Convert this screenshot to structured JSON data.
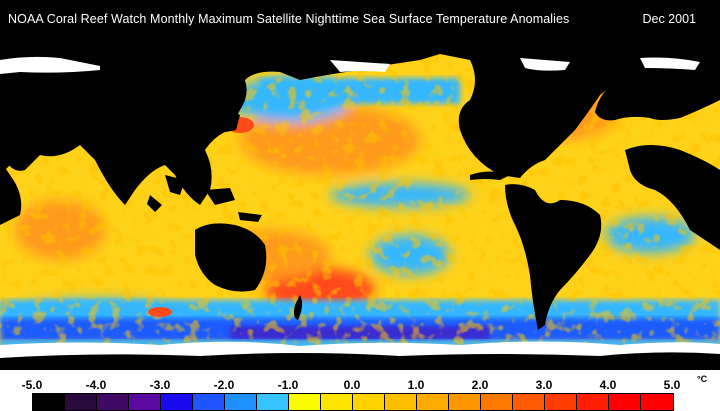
{
  "header": {
    "title": "NOAA Coral Reef Watch Monthly Maximum Satellite Nighttime Sea Surface Temperature Anomalies",
    "date": "Dec 2001"
  },
  "map": {
    "projection": "equirectangular world map centred on the Pacific",
    "ocean_field_colors": {
      "base": "#ffd21a",
      "warm": "#ff9a1a",
      "hot": "#ff4a1a",
      "cool": "#35b7ff",
      "cold": "#1f5cff",
      "very_cold": "#3a2cd0",
      "neutral": "#f6f600"
    },
    "land_color": "#000000",
    "ice_color": "#ffffff"
  },
  "legend": {
    "tick_labels": [
      "-5.0",
      "-4.0",
      "-3.0",
      "-2.0",
      "-1.0",
      "0.0",
      "1.0",
      "2.0",
      "3.0",
      "4.0",
      "5.0"
    ],
    "unit": "°C",
    "colors": [
      "#000000",
      "#2a0a3c",
      "#400a64",
      "#5a0aa0",
      "#1a0af0",
      "#1f55ff",
      "#1f90ff",
      "#36c3ff",
      "#fafa00",
      "#ffe600",
      "#ffd200",
      "#ffbe00",
      "#ffaa00",
      "#ff9600",
      "#ff7800",
      "#ff5a00",
      "#ff3c00",
      "#ff1e00",
      "#ff0000",
      "#ff0000"
    ]
  }
}
